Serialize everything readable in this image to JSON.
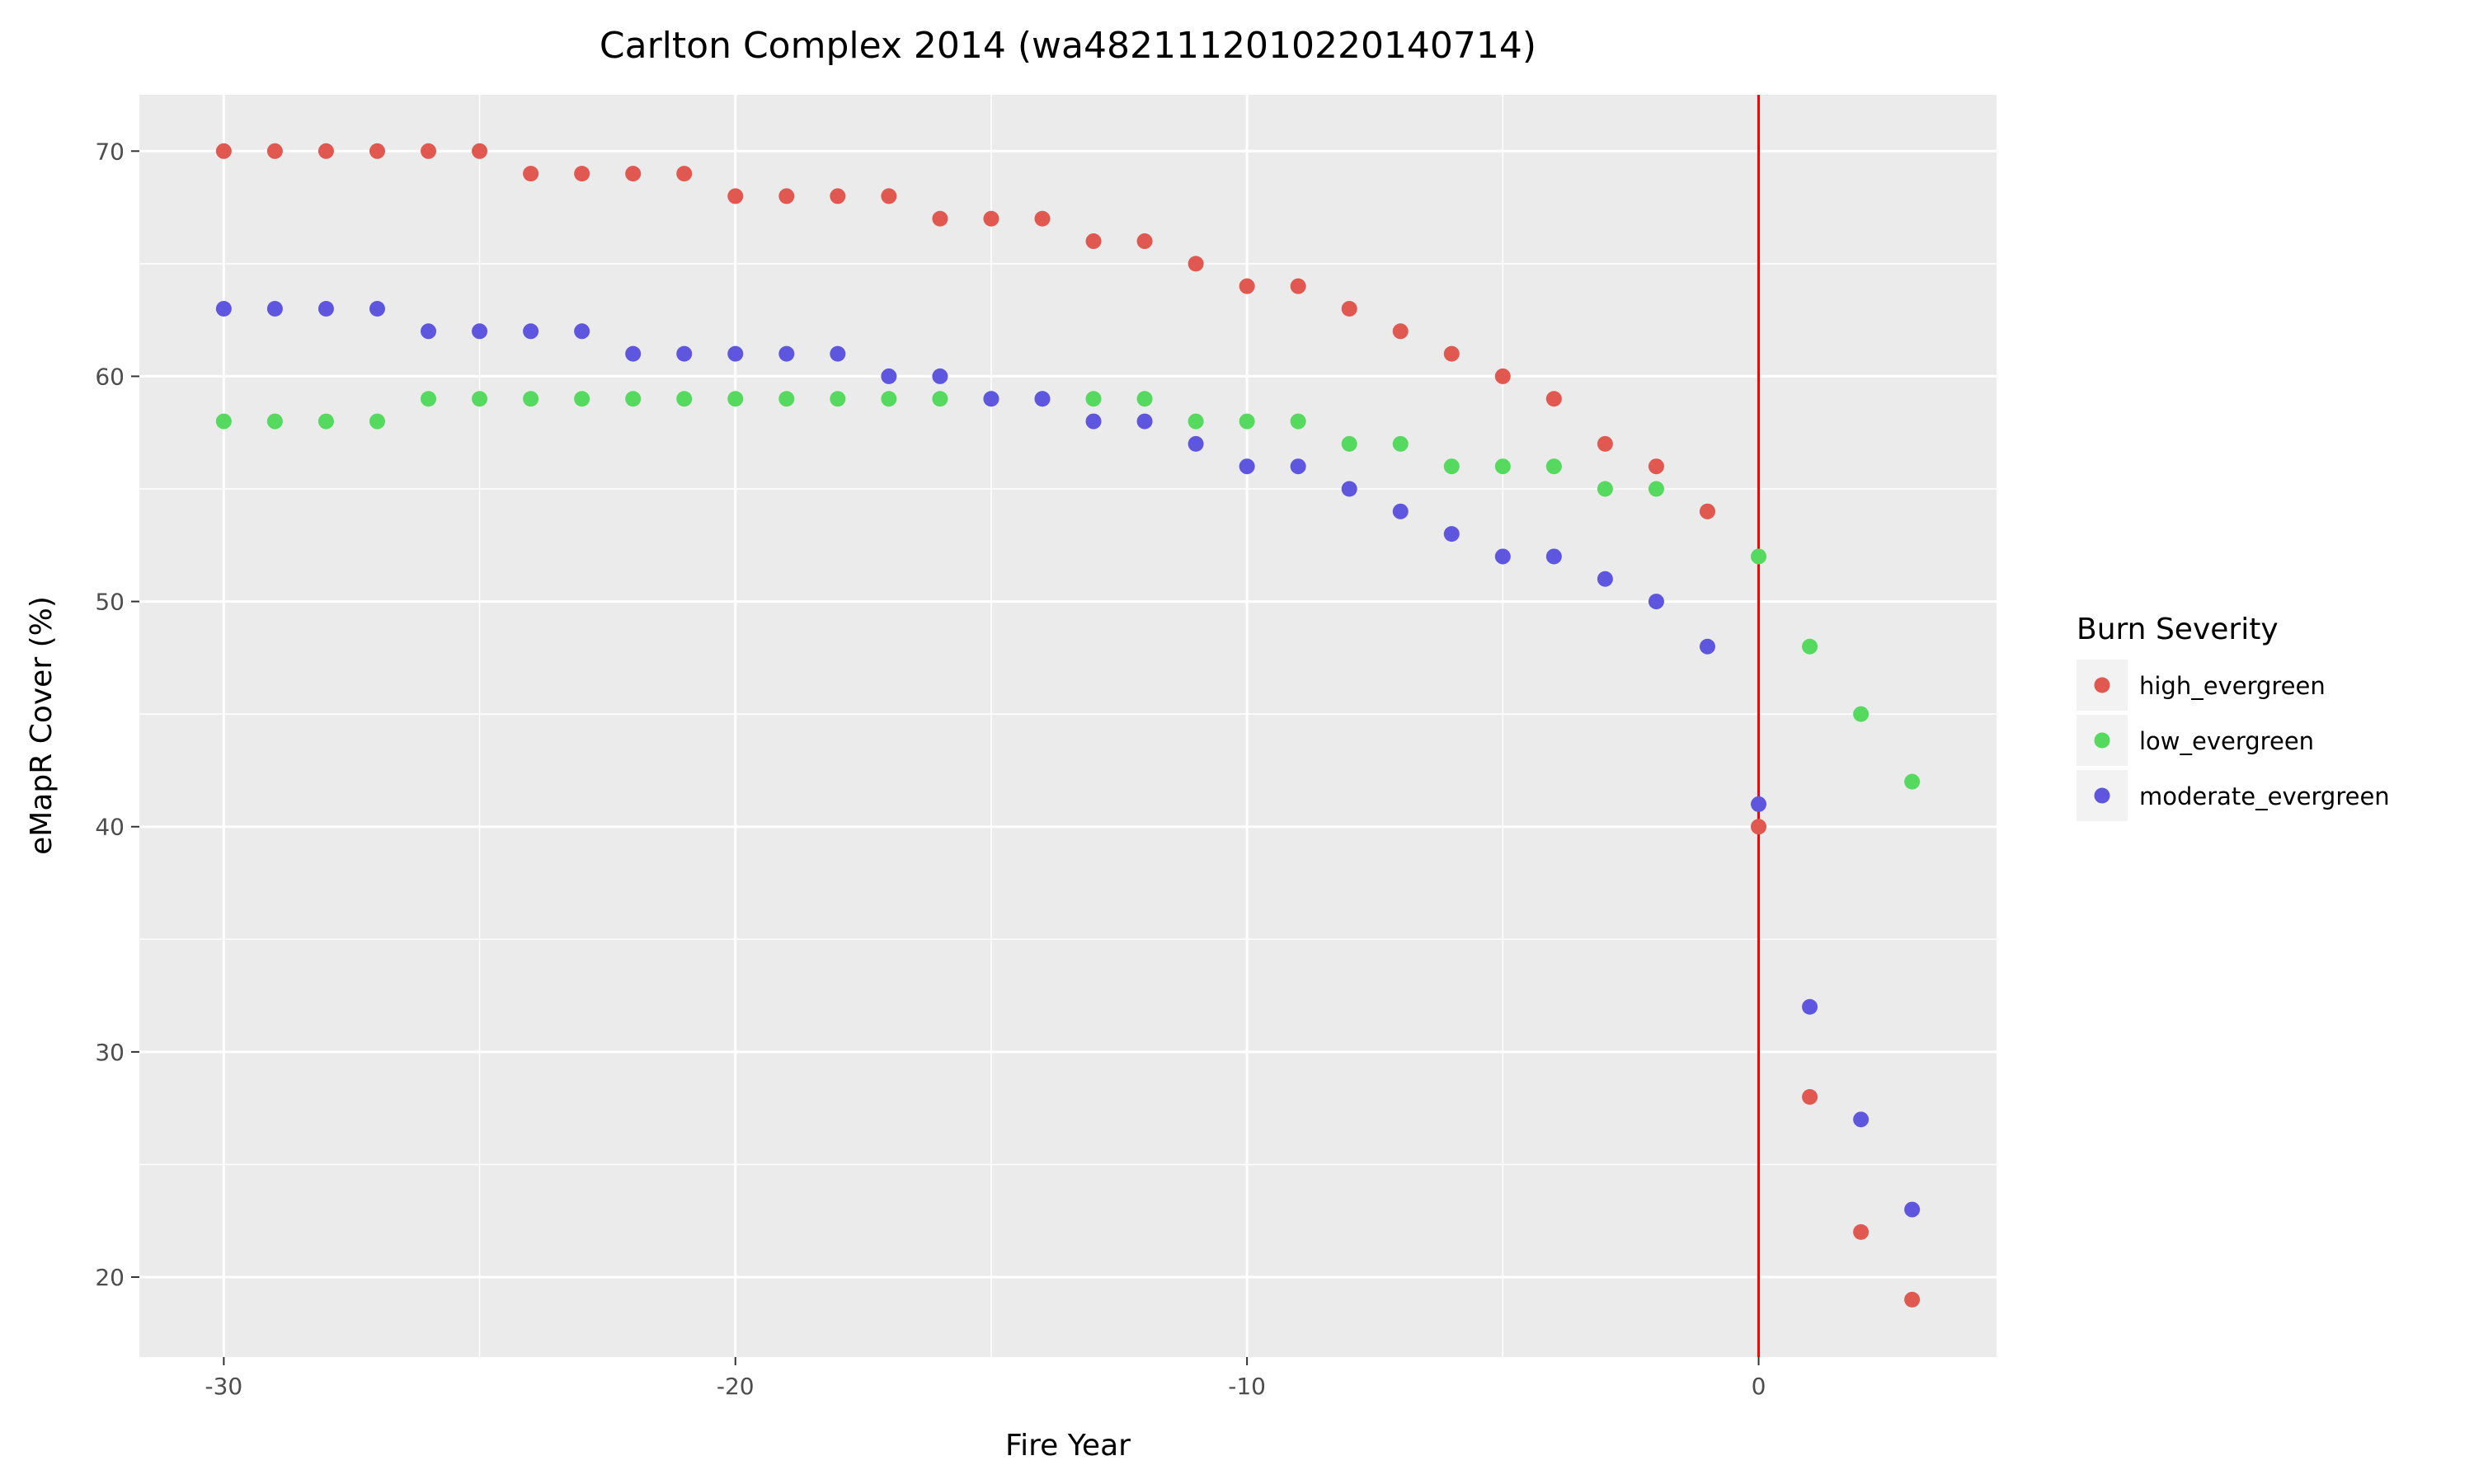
{
  "chart_data": {
    "type": "scatter",
    "title": "Carlton Complex 2014 (wa4821112010220140714)",
    "xlabel": "Fire Year",
    "ylabel": "eMapR Cover (%)",
    "xlim": [
      -31.65,
      4.65
    ],
    "ylim": [
      16.45,
      72.5
    ],
    "xticks": [
      -30,
      -20,
      -10,
      0
    ],
    "yticks": [
      20,
      30,
      40,
      50,
      60,
      70
    ],
    "grid": true,
    "vline": {
      "x": 0,
      "color": "#ff0000"
    },
    "legend": {
      "title": "Burn Severity",
      "placement": "right"
    },
    "x": [
      -30,
      -29,
      -28,
      -27,
      -26,
      -25,
      -24,
      -23,
      -22,
      -21,
      -20,
      -19,
      -18,
      -17,
      -16,
      -15,
      -14,
      -13,
      -12,
      -11,
      -10,
      -9,
      -8,
      -7,
      -6,
      -5,
      -4,
      -3,
      -2,
      -1,
      0,
      1,
      2,
      3
    ],
    "series": [
      {
        "name": "high_evergreen",
        "color": "#e0584f",
        "values": [
          70,
          70,
          70,
          70,
          70,
          70,
          69,
          69,
          69,
          69,
          68,
          68,
          68,
          68,
          67,
          67,
          67,
          66,
          66,
          65,
          64,
          64,
          63,
          62,
          61,
          60,
          59,
          57,
          56,
          54,
          40,
          28,
          22,
          19
        ]
      },
      {
        "name": "low_evergreen",
        "color": "#55d95f",
        "values": [
          58,
          58,
          58,
          58,
          59,
          59,
          59,
          59,
          59,
          59,
          59,
          59,
          59,
          59,
          59,
          59,
          59,
          59,
          59,
          58,
          58,
          58,
          57,
          57,
          56,
          56,
          56,
          55,
          55,
          54,
          52,
          48,
          45,
          42
        ]
      },
      {
        "name": "moderate_evergreen",
        "color": "#5f56df",
        "values": [
          63,
          63,
          63,
          63,
          62,
          62,
          62,
          62,
          61,
          61,
          61,
          61,
          61,
          60,
          60,
          59,
          59,
          58,
          58,
          57,
          56,
          56,
          55,
          54,
          53,
          52,
          52,
          51,
          50,
          48,
          41,
          32,
          27,
          23
        ]
      }
    ]
  }
}
